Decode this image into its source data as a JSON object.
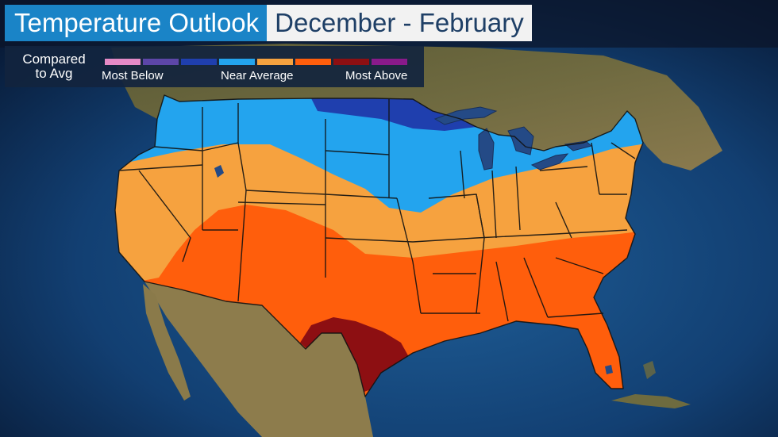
{
  "header": {
    "title": "Temperature Outlook",
    "period": "December - February"
  },
  "legend": {
    "caption_line1": "Compared",
    "caption_line2": "to Avg",
    "label_low": "Most Below",
    "label_mid": "Near Average",
    "label_high": "Most Above",
    "swatches": [
      {
        "name": "most-below-1",
        "color": "#e58ac6"
      },
      {
        "name": "most-below-2",
        "color": "#5d46a8"
      },
      {
        "name": "below",
        "color": "#1f3fae"
      },
      {
        "name": "near-average-cool",
        "color": "#23a4ee"
      },
      {
        "name": "near-average-warm",
        "color": "#f6a23f"
      },
      {
        "name": "above",
        "color": "#ff5e0c"
      },
      {
        "name": "most-above-1",
        "color": "#8d0f12"
      },
      {
        "name": "most-above-2",
        "color": "#891a8a"
      }
    ]
  },
  "map": {
    "region": "Contiguous United States",
    "zones": [
      {
        "name": "below-average-north",
        "color": "#1f3fae"
      },
      {
        "name": "near-average-cool",
        "color": "#23a4ee"
      },
      {
        "name": "slightly-above",
        "color": "#f6a23f"
      },
      {
        "name": "above-average-south",
        "color": "#ff5e0c"
      },
      {
        "name": "most-above-texas",
        "color": "#8d0f12"
      }
    ]
  }
}
